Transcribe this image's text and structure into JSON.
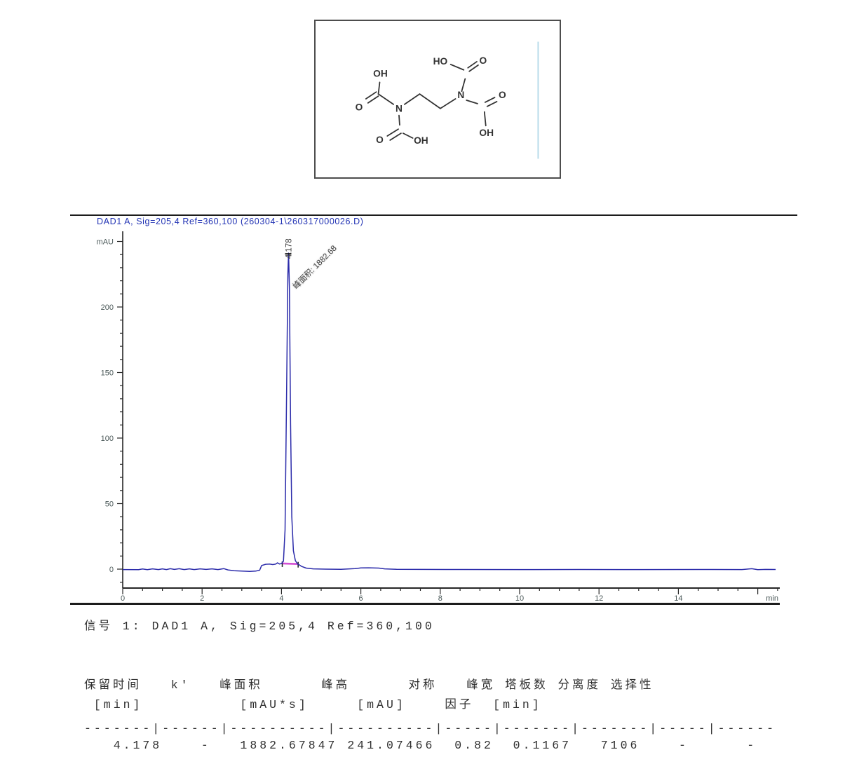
{
  "colors": {
    "title_blue": "#2233b4",
    "trace_blue": "#2b2baa",
    "integration_magenta": "#d34fd3",
    "axis_dark": "#262626",
    "tick_text": "#4a5858",
    "annotation_text": "#3a3a3a",
    "molecule_line": "#333333",
    "box_blue_line": "#b9dcea"
  },
  "molecule": {
    "labels": {
      "oh_top_left": "OH",
      "o_left": "O",
      "n_left": "N",
      "o_bottom_left": "O",
      "oh_bottom": "OH",
      "ho_top": "HO",
      "o_top_right": "O",
      "n_right": "N",
      "o_right": "O",
      "oh_bottom_right": "OH"
    }
  },
  "chart_data": {
    "type": "line",
    "title": "DAD1 A, Sig=205,4 Ref=360,100 (260304-1\\260317000026.D)",
    "ylabel": "mAU",
    "xlabel": "min",
    "xlim": [
      0,
      16.5
    ],
    "ylim": [
      -15,
      255
    ],
    "x_ticks": [
      0,
      2,
      4,
      6,
      8,
      10,
      12,
      14
    ],
    "x_minor_step": 0.5,
    "y_ticks": [
      0,
      50,
      100,
      150,
      200
    ],
    "y_minor_step": 10,
    "grid": false,
    "legend": false,
    "peak": {
      "retention_time_label": "4.178",
      "retention_time_min": 4.178,
      "height_mAU": 241.07466,
      "area_mAUs": 1882.67847,
      "area_annotation": "峰面积: 1882.68"
    },
    "integration_baseline": [
      [
        4.02,
        4.3
      ],
      [
        4.42,
        3.9
      ]
    ],
    "trace": [
      [
        0,
        -0.3
      ],
      [
        0.4,
        -0.4
      ],
      [
        0.5,
        0.1
      ],
      [
        0.62,
        -0.4
      ],
      [
        0.75,
        0.2
      ],
      [
        0.9,
        -0.3
      ],
      [
        1.0,
        0.2
      ],
      [
        1.1,
        -0.3
      ],
      [
        1.2,
        0.3
      ],
      [
        1.3,
        -0.2
      ],
      [
        1.42,
        0.3
      ],
      [
        1.55,
        -0.3
      ],
      [
        1.68,
        0.2
      ],
      [
        1.8,
        -0.3
      ],
      [
        1.95,
        0.2
      ],
      [
        2.1,
        -0.2
      ],
      [
        2.25,
        0.2
      ],
      [
        2.4,
        -0.3
      ],
      [
        2.55,
        0.4
      ],
      [
        2.65,
        -0.6
      ],
      [
        2.8,
        -1.2
      ],
      [
        3.0,
        -1.5
      ],
      [
        3.2,
        -1.7
      ],
      [
        3.35,
        -1.5
      ],
      [
        3.45,
        -0.8
      ],
      [
        3.5,
        2.8
      ],
      [
        3.6,
        3.7
      ],
      [
        3.7,
        3.9
      ],
      [
        3.78,
        3.5
      ],
      [
        3.85,
        3.8
      ],
      [
        3.9,
        4.8
      ],
      [
        3.95,
        3.9
      ],
      [
        4.0,
        4.3
      ],
      [
        4.05,
        6
      ],
      [
        4.09,
        30
      ],
      [
        4.13,
        140
      ],
      [
        4.16,
        225
      ],
      [
        4.178,
        241.1
      ],
      [
        4.2,
        215
      ],
      [
        4.23,
        110
      ],
      [
        4.26,
        40
      ],
      [
        4.3,
        14
      ],
      [
        4.35,
        6.5
      ],
      [
        4.4,
        4.2
      ],
      [
        4.5,
        2.2
      ],
      [
        4.62,
        0.8
      ],
      [
        4.8,
        0.2
      ],
      [
        5.1,
        0
      ],
      [
        5.5,
        -0.1
      ],
      [
        5.85,
        0.4
      ],
      [
        6.0,
        0.9
      ],
      [
        6.2,
        1.0
      ],
      [
        6.45,
        0.8
      ],
      [
        6.6,
        0.2
      ],
      [
        6.9,
        -0.1
      ],
      [
        7.5,
        -0.2
      ],
      [
        8.5,
        -0.25
      ],
      [
        10,
        -0.3
      ],
      [
        11.5,
        -0.25
      ],
      [
        13,
        -0.3
      ],
      [
        14.5,
        -0.25
      ],
      [
        15.6,
        -0.3
      ],
      [
        15.85,
        0.3
      ],
      [
        16.0,
        -0.4
      ],
      [
        16.2,
        -0.2
      ],
      [
        16.45,
        -0.25
      ]
    ]
  },
  "report": {
    "signal_title": "信号 1: DAD1 A, Sig=205,4 Ref=360,100",
    "peak_table": {
      "columns": [
        {
          "name": "保留时间",
          "unit": "[min]"
        },
        {
          "name": "k'",
          "unit": ""
        },
        {
          "name": "峰面积",
          "unit": "[mAU*s]"
        },
        {
          "name": "峰高",
          "unit": "[mAU]"
        },
        {
          "name": "对称因子",
          "unit": ""
        },
        {
          "name": "峰宽",
          "unit": "[min]"
        },
        {
          "name": "塔板数",
          "unit": ""
        },
        {
          "name": "分离度",
          "unit": ""
        },
        {
          "name": "选择性",
          "unit": ""
        }
      ],
      "rows": [
        [
          "4.178",
          "-",
          "1882.67847",
          "241.07466",
          "0.82",
          "0.1167",
          "7106",
          "-",
          "-"
        ]
      ],
      "line1": "保留时间   k'   峰面积      峰高      对称   峰宽 塔板数 分离度 选择性",
      "line2": " [min]          [mAU*s]     [mAU]    因子  [min]",
      "separator": "-------|------|----------|----------|-----|-------|-------|-----|------",
      "row1": "   4.178    -   1882.67847 241.07466  0.82  0.1167   7106    -      -"
    }
  }
}
